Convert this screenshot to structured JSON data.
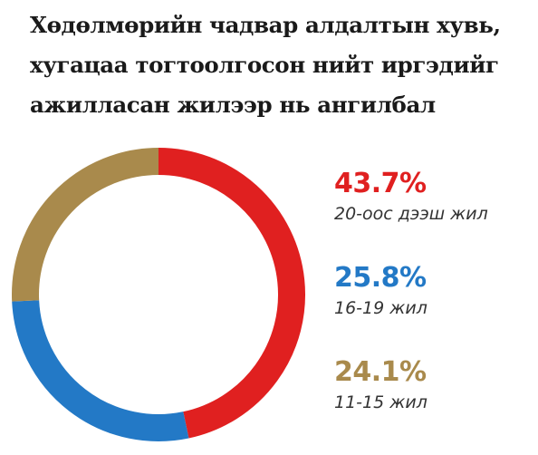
{
  "header": {
    "title_lines": [
      "Хөдөлмөрийн чадвар алдалтын хувь,",
      "хугацаа тогтоолгосон нийт иргэдийг",
      "ажилласан жилээр нь ангилбал"
    ]
  },
  "chart_data": {
    "type": "pie",
    "style": "donut",
    "title": "Хөдөлмөрийн чадвар алдалтын хувь, хугацаа тогтоолгосон нийт иргэдийг ажилласан жилээр нь ангилбал",
    "series": [
      {
        "label": "20-оос дээш жил",
        "value": 43.7,
        "value_label": "43.7%",
        "color": "#e02020"
      },
      {
        "label": "16-19 жил",
        "value": 25.8,
        "value_label": "25.8%",
        "color": "#2379c6"
      },
      {
        "label": "11-15 жил",
        "value": 24.1,
        "value_label": "24.1%",
        "color": "#a98a4c"
      }
    ],
    "legend_position": "right"
  }
}
